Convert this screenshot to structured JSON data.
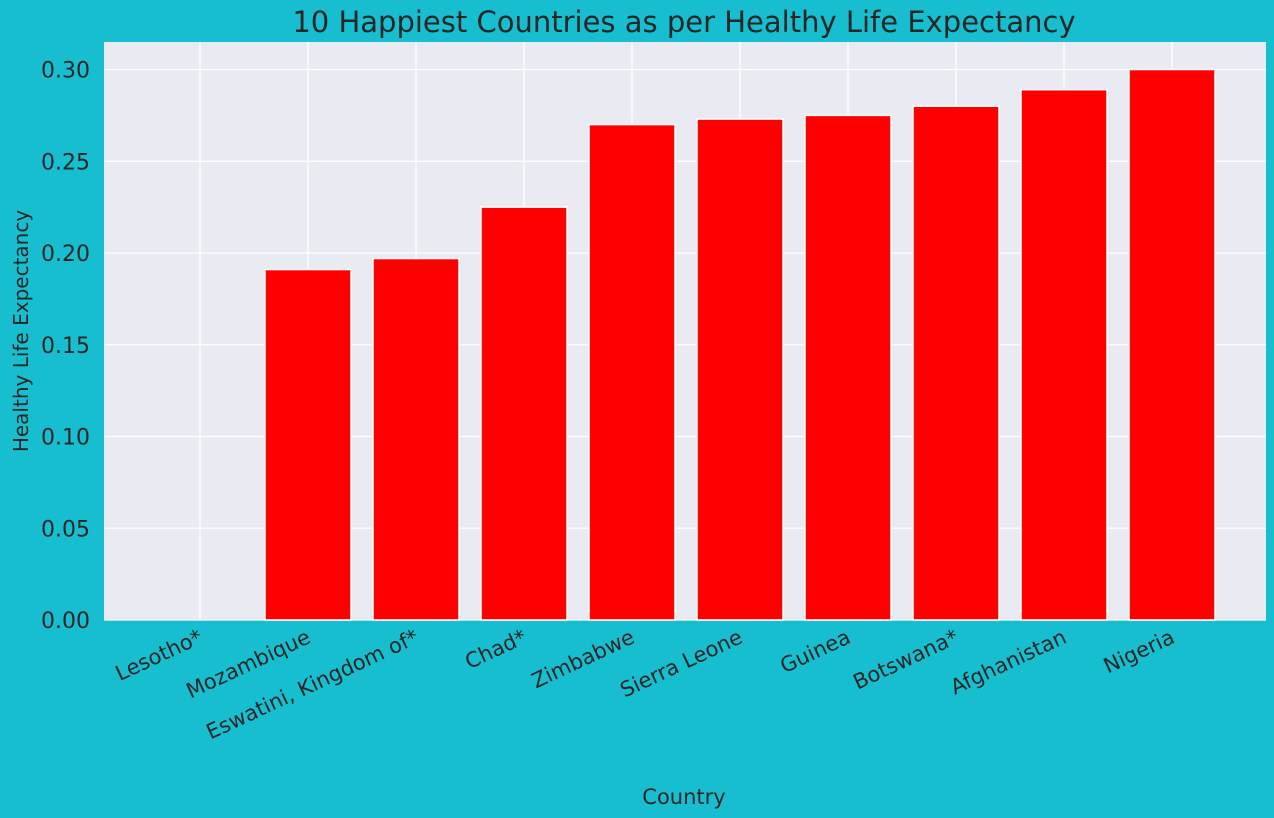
{
  "colors": {
    "background": "#17becf",
    "plot_area": "#eaeaf2",
    "grid": "#ffffff",
    "bar": "#ff0000",
    "text": "#262626"
  },
  "chart_data": {
    "type": "bar",
    "title": "10 Happiest Countries as per Healthy Life Expectancy",
    "xlabel": "Country",
    "ylabel": "Healthy Life Expectancy",
    "categories": [
      "Lesotho*",
      "Mozambique",
      "Eswatini, Kingdom of*",
      "Chad*",
      "Zimbabwe",
      "Sierra Leone",
      "Guinea",
      "Botswana*",
      "Afghanistan",
      "Nigeria"
    ],
    "values": [
      0.0,
      0.191,
      0.197,
      0.225,
      0.27,
      0.273,
      0.275,
      0.28,
      0.289,
      0.3
    ],
    "ylim": [
      0,
      0.315
    ],
    "yticks": [
      0.0,
      0.05,
      0.1,
      0.15,
      0.2,
      0.25,
      0.3
    ],
    "ytick_labels": [
      "0.00",
      "0.05",
      "0.10",
      "0.15",
      "0.20",
      "0.25",
      "0.30"
    ],
    "grid": true,
    "legend": "none"
  }
}
